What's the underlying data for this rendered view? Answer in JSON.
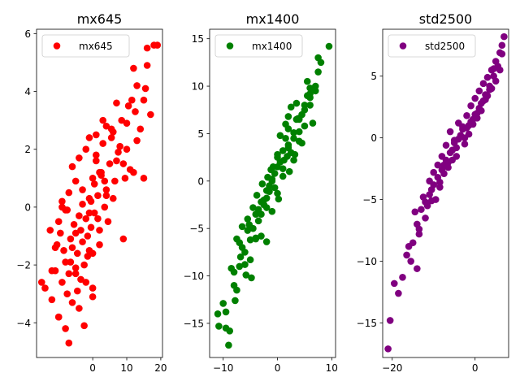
{
  "chart_data": [
    {
      "type": "scatter",
      "title": "mx645",
      "color": "#ff0000",
      "legend": "upper-left",
      "grid": false,
      "xlim": [
        -16.5,
        20.5
      ],
      "ylim": [
        -5.2,
        6.15
      ],
      "xticks": [
        {
          "v": 0,
          "label": "0"
        },
        {
          "v": 10,
          "label": "10"
        },
        {
          "v": 20,
          "label": "20"
        }
      ],
      "yticks": [
        {
          "v": -4,
          "label": "−4"
        },
        {
          "v": -2,
          "label": "−2"
        },
        {
          "v": 0,
          "label": "0"
        },
        {
          "v": 2,
          "label": "2"
        },
        {
          "v": 4,
          "label": "4"
        },
        {
          "v": 6,
          "label": "6"
        }
      ],
      "series": [
        {
          "name": "mx645",
          "x": [
            -15.0,
            -14.0,
            -12.5,
            -12.0,
            -11.0,
            -10.5,
            -10.0,
            -10.0,
            -9.5,
            -9.0,
            -9.0,
            -8.5,
            -8.0,
            -8.0,
            -7.5,
            -7.0,
            -7.0,
            -6.5,
            -6.0,
            -6.0,
            -5.5,
            -5.0,
            -5.0,
            -4.5,
            -4.0,
            -4.0,
            -3.5,
            -3.0,
            -3.0,
            -2.5,
            -2.0,
            -2.0,
            -1.5,
            -1.0,
            -1.0,
            -0.5,
            0.0,
            0.0,
            0.5,
            1.0,
            1.0,
            1.5,
            2.0,
            2.5,
            3.0,
            3.5,
            4.0,
            4.5,
            5.0,
            5.5,
            6.0,
            7.0,
            7.5,
            8.0,
            9.0,
            9.5,
            10.0,
            10.5,
            11.0,
            12.0,
            12.5,
            13.0,
            14.0,
            15.0,
            15.5,
            16.0,
            17.0,
            18.0,
            19.0,
            -10.0,
            -7.0,
            -4.0,
            -2.0,
            0.0,
            2.0,
            -12.0,
            -6.0,
            -3.0,
            1.0,
            3.0,
            6.0,
            -8.0,
            -1.0,
            4.0,
            -9.0,
            -5.0,
            0.5,
            2.5,
            5.5,
            8.5,
            10.0,
            13.0,
            -11.0,
            -4.5,
            -1.5,
            1.5,
            3.5,
            7.0,
            -7.5,
            -3.5,
            -0.5,
            11.5,
            15.0,
            -6.5,
            -2.5,
            0.0,
            4.0,
            9.0,
            -5.0,
            -1.0,
            2.0,
            6.5,
            12.0,
            16.0
          ],
          "y": [
            -2.6,
            -2.8,
            -0.8,
            -3.2,
            -2.2,
            -1.3,
            -3.8,
            -0.5,
            -0.9,
            -2.6,
            0.2,
            -1.5,
            -4.2,
            -0.1,
            -3.0,
            -2.3,
            0.5,
            -1.9,
            -3.3,
            1.4,
            -0.6,
            -2.1,
            0.9,
            -1.6,
            -0.3,
            1.7,
            -2.5,
            -1.2,
            0.6,
            -4.1,
            -0.4,
            2.0,
            -1.0,
            0.3,
            2.4,
            -0.7,
            1.0,
            -3.1,
            -0.2,
            1.8,
            2.5,
            0.4,
            -1.3,
            1.2,
            2.2,
            0.0,
            2.8,
            -0.5,
            1.5,
            2.7,
            0.3,
            3.6,
            1.9,
            2.1,
            -1.1,
            1.0,
            2.9,
            3.5,
            1.3,
            4.8,
            3.3,
            2.3,
            2.7,
            1.0,
            4.1,
            5.5,
            3.2,
            5.6,
            5.6,
            -3.8,
            -4.7,
            -3.5,
            -2.6,
            -1.6,
            -0.8,
            -2.2,
            -1.4,
            0.1,
            1.6,
            3.0,
            2.6,
            -1.9,
            -0.2,
            0.6,
            0.0,
            -0.9,
            0.8,
            1.1,
            2.4,
            3.0,
            2.0,
            4.2,
            -1.4,
            -2.9,
            -1.7,
            -0.4,
            0.9,
            1.6,
            -0.1,
            -0.8,
            0.2,
            3.7,
            3.7,
            -1.1,
            -2.0,
            -2.8,
            0.4,
            1.5,
            -2.3,
            -1.5,
            1.2,
            0.9,
            1.2,
            4.9
          ],
          "color": "#ff0000"
        }
      ]
    },
    {
      "type": "scatter",
      "title": "mx1400",
      "color": "#008000",
      "legend": "upper-left",
      "grid": false,
      "xlim": [
        -12.5,
        10.7
      ],
      "ylim": [
        -18.6,
        16.0
      ],
      "xticks": [
        {
          "v": -10,
          "label": "−10"
        },
        {
          "v": 0,
          "label": "0"
        },
        {
          "v": 10,
          "label": "10"
        }
      ],
      "yticks": [
        {
          "v": -15,
          "label": "−15"
        },
        {
          "v": -10,
          "label": "−10"
        },
        {
          "v": -5,
          "label": "−5"
        },
        {
          "v": 0,
          "label": "0"
        },
        {
          "v": 5,
          "label": "5"
        },
        {
          "v": 10,
          "label": "10"
        },
        {
          "v": 15,
          "label": "15"
        }
      ],
      "series": [
        {
          "name": "mx1400",
          "x": [
            -11.0,
            -10.8,
            -10.0,
            -9.5,
            -9.0,
            -8.8,
            -8.5,
            -8.0,
            -7.8,
            -7.5,
            -7.0,
            -6.5,
            -6.0,
            -5.8,
            -5.5,
            -5.0,
            -4.8,
            -4.5,
            -4.0,
            -3.8,
            -3.5,
            -3.0,
            -2.8,
            -2.5,
            -2.0,
            -1.8,
            -1.5,
            -1.0,
            -0.8,
            -0.5,
            0.0,
            0.2,
            0.5,
            1.0,
            1.2,
            1.5,
            2.0,
            2.2,
            2.5,
            3.0,
            3.2,
            3.5,
            4.0,
            4.5,
            5.0,
            5.5,
            6.0,
            6.5,
            7.0,
            7.5,
            8.0,
            9.5,
            -7.0,
            -6.0,
            -5.0,
            -4.0,
            -3.0,
            -2.0,
            -1.0,
            0.0,
            1.0,
            2.0,
            3.0,
            4.0,
            5.0,
            6.0,
            -6.5,
            -4.5,
            -2.5,
            -0.5,
            1.5,
            3.5,
            5.5,
            -5.5,
            -3.5,
            -1.5,
            0.5,
            2.5,
            4.5,
            -8.0,
            -2.0,
            0.0,
            2.0,
            4.0,
            6.0,
            -3.0,
            -1.0,
            1.0,
            3.0,
            5.0,
            7.0,
            -4.0,
            -2.0,
            0.0,
            2.0,
            7.5,
            6.0,
            -9.5,
            -7.5,
            -6.8,
            -5.2,
            -1.2,
            1.8,
            3.8
          ],
          "y": [
            -14.0,
            -15.3,
            -12.9,
            -13.8,
            -17.3,
            -15.8,
            -9.2,
            -11.0,
            -12.6,
            -6.1,
            -9.0,
            -4.8,
            -7.5,
            -9.9,
            -5.2,
            -8.3,
            -10.2,
            -2.8,
            -6.1,
            -1.5,
            -4.2,
            -3.5,
            -0.3,
            -2.0,
            -6.4,
            0.4,
            -1.1,
            -3.2,
            1.5,
            -0.7,
            2.8,
            -1.9,
            4.8,
            0.5,
            2.2,
            6.0,
            3.5,
            1.0,
            7.8,
            5.1,
            2.8,
            8.2,
            6.5,
            4.0,
            7.5,
            10.5,
            9.8,
            6.1,
            9.5,
            13.0,
            12.5,
            14.2,
            -6.5,
            -8.8,
            -6.2,
            -3.5,
            -5.8,
            -1.0,
            0.0,
            -1.3,
            1.3,
            3.8,
            2.2,
            4.2,
            5.8,
            8.0,
            -7.0,
            -5.0,
            -2.5,
            0.8,
            4.5,
            6.5,
            9.0,
            -4.0,
            -3.0,
            -0.5,
            2.0,
            3.0,
            7.0,
            -9.6,
            -2.8,
            1.5,
            5.5,
            5.2,
            9.2,
            -2.2,
            0.2,
            3.2,
            4.5,
            8.0,
            10.0,
            -6.0,
            -1.8,
            2.5,
            6.8,
            11.5,
            8.8,
            -15.5,
            -11.5,
            -8.0,
            -4.6,
            1.2,
            2.6,
            6.6
          ],
          "color": "#008000"
        }
      ]
    },
    {
      "type": "scatter",
      "title": "std2500",
      "color": "#800080",
      "legend": "upper-left",
      "grid": false,
      "xlim": [
        -22.3,
        8.1
      ],
      "ylim": [
        -17.8,
        8.8
      ],
      "xticks": [
        {
          "v": -20,
          "label": "−20"
        },
        {
          "v": 0,
          "label": "0"
        }
      ],
      "yticks": [
        {
          "v": -15,
          "label": "−15"
        },
        {
          "v": -10,
          "label": "−10"
        },
        {
          "v": -5,
          "label": "−5"
        },
        {
          "v": 0,
          "label": "0"
        },
        {
          "v": 5,
          "label": "5"
        }
      ],
      "series": [
        {
          "name": "std2500",
          "x": [
            -21.0,
            -20.5,
            -19.5,
            -18.5,
            -17.5,
            -16.5,
            -15.5,
            -15.0,
            -14.5,
            -14.0,
            -13.5,
            -13.0,
            -12.5,
            -12.0,
            -11.5,
            -11.0,
            -10.5,
            -10.0,
            -9.5,
            -9.0,
            -8.5,
            -8.0,
            -7.5,
            -7.0,
            -6.5,
            -6.0,
            -5.5,
            -5.0,
            -4.5,
            -4.0,
            -3.5,
            -3.0,
            -2.5,
            -2.0,
            -1.5,
            -1.0,
            -0.5,
            0.0,
            0.5,
            1.0,
            1.5,
            2.0,
            2.5,
            3.0,
            3.5,
            4.0,
            4.5,
            5.0,
            5.5,
            6.0,
            6.5,
            7.0,
            -16.0,
            -14.0,
            -12.0,
            -10.0,
            -8.0,
            -6.0,
            -4.0,
            -2.0,
            0.0,
            2.0,
            4.0,
            6.0,
            -11.0,
            -9.0,
            -7.0,
            -5.0,
            -3.0,
            -1.0,
            1.0,
            3.0,
            5.0,
            -13.5,
            -10.5,
            -7.5,
            -4.5,
            -1.5,
            1.5,
            4.5,
            -8.5,
            -5.5,
            -2.5,
            0.5,
            3.5,
            6.5,
            -6.5,
            -3.5,
            -0.5,
            2.5
          ],
          "y": [
            -17.1,
            -14.8,
            -11.8,
            -12.6,
            -11.3,
            -9.5,
            -10.0,
            -8.5,
            -6.0,
            -10.6,
            -7.8,
            -5.8,
            -4.8,
            -6.5,
            -5.5,
            -3.5,
            -4.2,
            -2.8,
            -5.0,
            -2.2,
            -3.6,
            -1.5,
            -2.9,
            -0.6,
            -2.4,
            0.5,
            -1.8,
            -0.2,
            -0.8,
            1.2,
            0.2,
            0.9,
            -0.5,
            1.8,
            1.0,
            2.6,
            1.5,
            3.2,
            2.0,
            3.8,
            2.8,
            4.4,
            3.5,
            4.9,
            4.2,
            5.5,
            5.0,
            6.2,
            5.8,
            6.9,
            7.5,
            8.2,
            -8.8,
            -7.0,
            -5.2,
            -3.8,
            -2.6,
            -1.2,
            -0.1,
            0.8,
            1.9,
            3.0,
            4.0,
            5.5,
            -4.6,
            -3.2,
            -1.8,
            -0.4,
            0.7,
            1.3,
            2.4,
            3.4,
            4.6,
            -7.4,
            -5.1,
            -2.2,
            -1.5,
            0.3,
            2.2,
            5.6,
            -4.0,
            -1.0,
            0.0,
            1.6,
            3.9,
            6.8,
            -2.0,
            0.1,
            1.1,
            3.1
          ],
          "color": "#800080"
        }
      ]
    }
  ]
}
